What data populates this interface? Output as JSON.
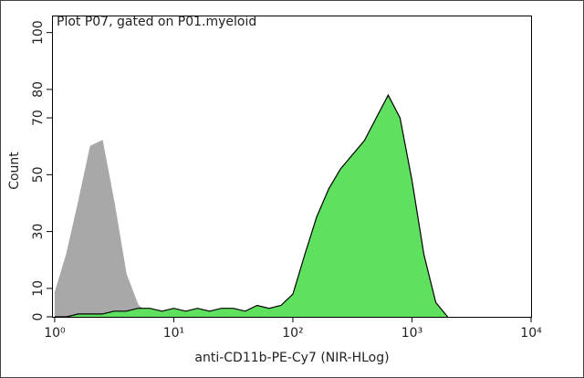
{
  "chart_data": {
    "type": "histogram-area",
    "title": "Plot P07, gated on P01.myeloid",
    "x_label": "anti-CD11b-PE-Cy7 (NIR-HLog)",
    "y_label": "Count",
    "xscale": "log",
    "x": [
      1,
      1.26,
      1.58,
      2,
      2.51,
      3.16,
      3.98,
      5.01,
      6.31,
      7.94,
      10,
      12.6,
      15.8,
      20,
      25.1,
      31.6,
      39.8,
      50.1,
      63.1,
      79.4,
      100,
      126,
      158,
      200,
      251,
      316,
      398,
      501,
      631,
      794,
      1000,
      1259,
      1585,
      1995
    ],
    "series": [
      {
        "color": "#a8a8a8",
        "outline": "#a8a8a8",
        "values": [
          8,
          22,
          40,
          60,
          62,
          40,
          15,
          4,
          1,
          0,
          0,
          0,
          0,
          0,
          0,
          0,
          0,
          0,
          0,
          0,
          0,
          0,
          0,
          0,
          0,
          0,
          0,
          0,
          0,
          0,
          0,
          0,
          0,
          0
        ]
      },
      {
        "color": "#5fe05f",
        "outline": "#000000",
        "values": [
          0,
          0,
          1,
          1,
          1,
          2,
          2,
          3,
          3,
          2,
          3,
          2,
          3,
          2,
          3,
          3,
          2,
          4,
          3,
          4,
          8,
          22,
          35,
          45,
          52,
          57,
          62,
          70,
          78,
          70,
          48,
          22,
          5,
          0
        ]
      }
    ],
    "xlim": [
      0.95,
      10000
    ],
    "xticks": [
      {
        "value": 1,
        "label": "10⁰"
      },
      {
        "value": 10,
        "label": "10¹"
      },
      {
        "value": 100,
        "label": "10²"
      },
      {
        "value": 1000,
        "label": "10³"
      },
      {
        "value": 10000,
        "label": "10⁴"
      }
    ],
    "ylim": [
      0,
      106
    ],
    "yticks": [
      0,
      10,
      30,
      50,
      70,
      80,
      100
    ]
  }
}
